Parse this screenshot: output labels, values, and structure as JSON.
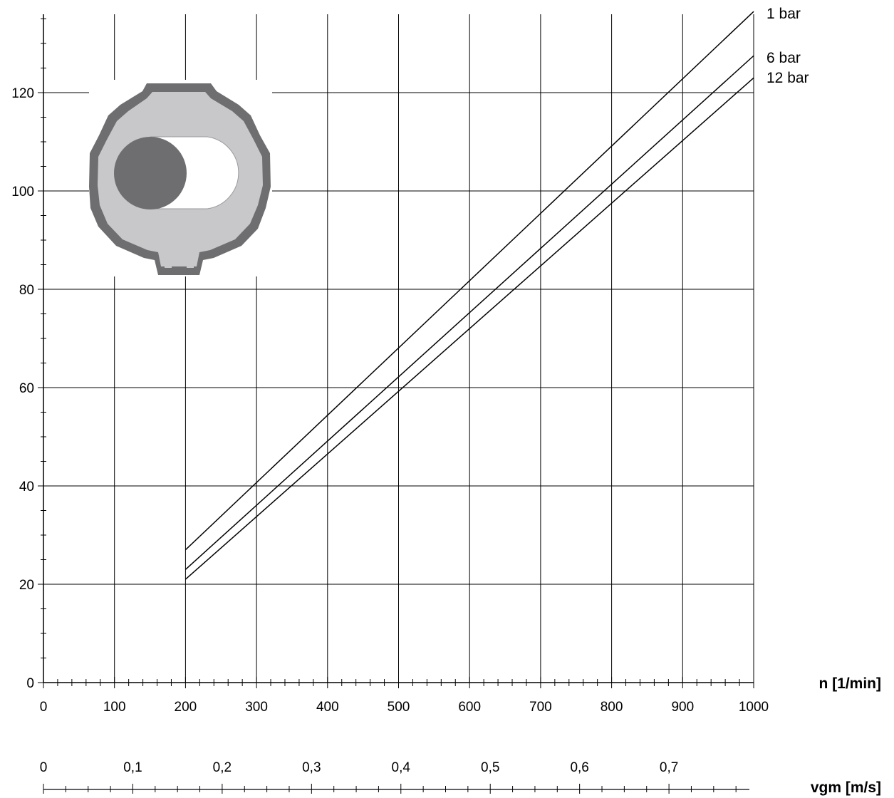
{
  "chart_data": {
    "type": "line",
    "title": "",
    "xlabel": "n [1/min]",
    "ylabel": "",
    "xlim": [
      0,
      1000
    ],
    "ylim": [
      0,
      130
    ],
    "x_ticks": [
      0,
      100,
      200,
      300,
      400,
      500,
      600,
      700,
      800,
      900,
      1000
    ],
    "y_ticks": [
      0,
      20,
      40,
      60,
      80,
      100,
      120
    ],
    "grid": true,
    "legend": "labels at right end of lines",
    "series": [
      {
        "name": "1 bar",
        "x": [
          200,
          1000
        ],
        "y": [
          27,
          136.5
        ]
      },
      {
        "name": "6 bar",
        "x": [
          200,
          1000
        ],
        "y": [
          23,
          127.5
        ]
      },
      {
        "name": "12 bar",
        "x": [
          200,
          1000
        ],
        "y": [
          21,
          123
        ]
      }
    ],
    "secondary_x_axis": {
      "label": "vgm [m/s]",
      "ticks": [
        0,
        0.1,
        0.2,
        0.3,
        0.4,
        0.5,
        0.6,
        0.7
      ],
      "tick_labels": [
        "0",
        "0,1",
        "0,2",
        "0,3",
        "0,4",
        "0,5",
        "0,6",
        "0,7"
      ],
      "max_value": 0.79
    },
    "inset": {
      "kind": "pump cross-section illustration",
      "colors": {
        "housing": "#6e6e70",
        "fill": "#c8c8ca",
        "rotor": "#6e6e70",
        "chamber": "#ffffff"
      }
    }
  }
}
